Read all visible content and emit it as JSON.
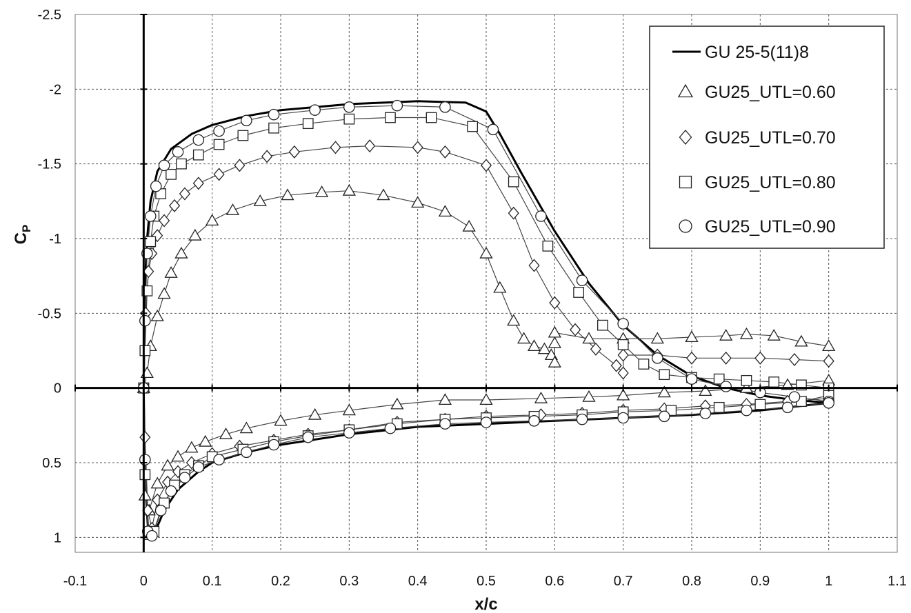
{
  "chart_data": {
    "type": "line",
    "xlabel": "x/c",
    "ylabel": "C",
    "ylabel_sub": "P",
    "xlim": [
      -0.1,
      1.1
    ],
    "ylim": [
      1.1,
      -2.5
    ],
    "y_inverted": true,
    "x_ticks": [
      "-0.1",
      "0",
      "0.1",
      "0.2",
      "0.3",
      "0.4",
      "0.5",
      "0.6",
      "0.7",
      "0.8",
      "0.9",
      "1",
      "1.1"
    ],
    "y_ticks": [
      "-2.5",
      "-2",
      "-1.5",
      "-1",
      "-0.5",
      "0",
      "0.5",
      "1"
    ],
    "grid": true,
    "legend_position": "top-right",
    "series": [
      {
        "name": "GU 25-5(11)8",
        "marker": "none",
        "upper": [
          [
            0,
            0
          ],
          [
            0.002,
            -0.7
          ],
          [
            0.005,
            -1.0
          ],
          [
            0.01,
            -1.25
          ],
          [
            0.02,
            -1.45
          ],
          [
            0.04,
            -1.6
          ],
          [
            0.07,
            -1.7
          ],
          [
            0.1,
            -1.76
          ],
          [
            0.15,
            -1.82
          ],
          [
            0.2,
            -1.86
          ],
          [
            0.3,
            -1.9
          ],
          [
            0.4,
            -1.92
          ],
          [
            0.47,
            -1.91
          ],
          [
            0.5,
            -1.85
          ],
          [
            0.52,
            -1.7
          ],
          [
            0.55,
            -1.45
          ],
          [
            0.6,
            -1.05
          ],
          [
            0.65,
            -0.7
          ],
          [
            0.7,
            -0.42
          ],
          [
            0.75,
            -0.22
          ],
          [
            0.8,
            -0.08
          ],
          [
            0.85,
            0.0
          ],
          [
            0.9,
            0.05
          ],
          [
            0.95,
            0.08
          ],
          [
            1.0,
            0.1
          ]
        ],
        "lower": [
          [
            0,
            0
          ],
          [
            0.002,
            0.6
          ],
          [
            0.006,
            0.92
          ],
          [
            0.015,
            0.98
          ],
          [
            0.03,
            0.82
          ],
          [
            0.05,
            0.68
          ],
          [
            0.08,
            0.56
          ],
          [
            0.1,
            0.5
          ],
          [
            0.15,
            0.43
          ],
          [
            0.2,
            0.38
          ],
          [
            0.3,
            0.31
          ],
          [
            0.4,
            0.26
          ],
          [
            0.5,
            0.24
          ],
          [
            0.6,
            0.22
          ],
          [
            0.7,
            0.2
          ],
          [
            0.8,
            0.18
          ],
          [
            0.9,
            0.15
          ],
          [
            1.0,
            0.1
          ]
        ]
      },
      {
        "name": "GU25_UTL=0.60",
        "marker": "triangle",
        "upper": [
          [
            0,
            0
          ],
          [
            0.005,
            -0.1
          ],
          [
            0.01,
            -0.28
          ],
          [
            0.02,
            -0.48
          ],
          [
            0.03,
            -0.63
          ],
          [
            0.04,
            -0.77
          ],
          [
            0.055,
            -0.9
          ],
          [
            0.075,
            -1.02
          ],
          [
            0.1,
            -1.12
          ],
          [
            0.13,
            -1.19
          ],
          [
            0.17,
            -1.25
          ],
          [
            0.21,
            -1.29
          ],
          [
            0.26,
            -1.31
          ],
          [
            0.3,
            -1.32
          ],
          [
            0.35,
            -1.29
          ],
          [
            0.4,
            -1.24
          ],
          [
            0.44,
            -1.18
          ],
          [
            0.475,
            -1.08
          ],
          [
            0.5,
            -0.9
          ],
          [
            0.52,
            -0.67
          ],
          [
            0.54,
            -0.45
          ],
          [
            0.555,
            -0.33
          ],
          [
            0.57,
            -0.28
          ],
          [
            0.585,
            -0.26
          ],
          [
            0.595,
            -0.22
          ],
          [
            0.6,
            -0.17
          ],
          [
            0.6,
            -0.3
          ],
          [
            0.6,
            -0.37
          ],
          [
            0.65,
            -0.33
          ],
          [
            0.7,
            -0.33
          ],
          [
            0.75,
            -0.33
          ],
          [
            0.8,
            -0.34
          ],
          [
            0.85,
            -0.35
          ],
          [
            0.88,
            -0.36
          ],
          [
            0.92,
            -0.35
          ],
          [
            0.96,
            -0.31
          ],
          [
            1.0,
            -0.28
          ]
        ],
        "lower": [
          [
            0,
            0
          ],
          [
            0.002,
            0.72
          ],
          [
            0.008,
            0.82
          ],
          [
            0.02,
            0.64
          ],
          [
            0.035,
            0.52
          ],
          [
            0.05,
            0.46
          ],
          [
            0.07,
            0.4
          ],
          [
            0.09,
            0.36
          ],
          [
            0.12,
            0.31
          ],
          [
            0.15,
            0.27
          ],
          [
            0.2,
            0.22
          ],
          [
            0.25,
            0.18
          ],
          [
            0.3,
            0.15
          ],
          [
            0.37,
            0.11
          ],
          [
            0.44,
            0.08
          ],
          [
            0.5,
            0.08
          ],
          [
            0.58,
            0.07
          ],
          [
            0.65,
            0.06
          ],
          [
            0.7,
            0.05
          ],
          [
            0.76,
            0.03
          ],
          [
            0.82,
            0.02
          ],
          [
            0.88,
            0.0
          ],
          [
            0.94,
            -0.02
          ],
          [
            1.0,
            -0.05
          ]
        ]
      },
      {
        "name": "GU25_UTL=0.70",
        "marker": "diamond",
        "upper": [
          [
            0,
            0
          ],
          [
            0.003,
            -0.5
          ],
          [
            0.007,
            -0.78
          ],
          [
            0.012,
            -0.9
          ],
          [
            0.02,
            -1.02
          ],
          [
            0.03,
            -1.12
          ],
          [
            0.045,
            -1.22
          ],
          [
            0.06,
            -1.3
          ],
          [
            0.08,
            -1.37
          ],
          [
            0.11,
            -1.43
          ],
          [
            0.14,
            -1.49
          ],
          [
            0.18,
            -1.55
          ],
          [
            0.22,
            -1.58
          ],
          [
            0.28,
            -1.61
          ],
          [
            0.33,
            -1.62
          ],
          [
            0.4,
            -1.61
          ],
          [
            0.44,
            -1.58
          ],
          [
            0.5,
            -1.49
          ],
          [
            0.54,
            -1.17
          ],
          [
            0.57,
            -0.82
          ],
          [
            0.6,
            -0.57
          ],
          [
            0.63,
            -0.39
          ],
          [
            0.66,
            -0.26
          ],
          [
            0.69,
            -0.15
          ],
          [
            0.7,
            -0.1
          ],
          [
            0.7,
            -0.22
          ],
          [
            0.75,
            -0.22
          ],
          [
            0.8,
            -0.2
          ],
          [
            0.85,
            -0.2
          ],
          [
            0.9,
            -0.2
          ],
          [
            0.95,
            -0.19
          ],
          [
            1.0,
            -0.18
          ]
        ],
        "lower": [
          [
            0,
            0
          ],
          [
            0.002,
            0.33
          ],
          [
            0.006,
            0.82
          ],
          [
            0.012,
            0.94
          ],
          [
            0.02,
            0.75
          ],
          [
            0.035,
            0.63
          ],
          [
            0.05,
            0.56
          ],
          [
            0.07,
            0.5
          ],
          [
            0.1,
            0.44
          ],
          [
            0.14,
            0.39
          ],
          [
            0.19,
            0.35
          ],
          [
            0.24,
            0.31
          ],
          [
            0.3,
            0.28
          ],
          [
            0.37,
            0.23
          ],
          [
            0.44,
            0.21
          ],
          [
            0.5,
            0.19
          ],
          [
            0.58,
            0.18
          ],
          [
            0.64,
            0.17
          ],
          [
            0.7,
            0.15
          ],
          [
            0.76,
            0.14
          ],
          [
            0.82,
            0.12
          ],
          [
            0.88,
            0.11
          ],
          [
            0.94,
            0.09
          ],
          [
            1.0,
            0.07
          ]
        ]
      },
      {
        "name": "GU25_UTL=0.80",
        "marker": "square",
        "upper": [
          [
            0,
            0
          ],
          [
            0.002,
            -0.25
          ],
          [
            0.005,
            -0.65
          ],
          [
            0.01,
            -0.98
          ],
          [
            0.015,
            -1.15
          ],
          [
            0.025,
            -1.3
          ],
          [
            0.04,
            -1.43
          ],
          [
            0.055,
            -1.5
          ],
          [
            0.08,
            -1.56
          ],
          [
            0.11,
            -1.63
          ],
          [
            0.145,
            -1.69
          ],
          [
            0.19,
            -1.74
          ],
          [
            0.24,
            -1.77
          ],
          [
            0.3,
            -1.8
          ],
          [
            0.36,
            -1.81
          ],
          [
            0.42,
            -1.81
          ],
          [
            0.48,
            -1.75
          ],
          [
            0.54,
            -1.38
          ],
          [
            0.59,
            -0.95
          ],
          [
            0.635,
            -0.64
          ],
          [
            0.67,
            -0.42
          ],
          [
            0.7,
            -0.29
          ],
          [
            0.73,
            -0.16
          ],
          [
            0.76,
            -0.09
          ],
          [
            0.8,
            -0.07
          ],
          [
            0.84,
            -0.06
          ],
          [
            0.88,
            -0.05
          ],
          [
            0.92,
            -0.04
          ],
          [
            0.96,
            -0.02
          ],
          [
            1.0,
            0.0
          ]
        ],
        "lower": [
          [
            0,
            0
          ],
          [
            0.002,
            0.58
          ],
          [
            0.008,
            0.98
          ],
          [
            0.015,
            0.96
          ],
          [
            0.03,
            0.77
          ],
          [
            0.045,
            0.65
          ],
          [
            0.06,
            0.58
          ],
          [
            0.08,
            0.52
          ],
          [
            0.1,
            0.46
          ],
          [
            0.145,
            0.41
          ],
          [
            0.19,
            0.36
          ],
          [
            0.24,
            0.32
          ],
          [
            0.3,
            0.28
          ],
          [
            0.37,
            0.24
          ],
          [
            0.44,
            0.21
          ],
          [
            0.5,
            0.2
          ],
          [
            0.57,
            0.19
          ],
          [
            0.64,
            0.18
          ],
          [
            0.7,
            0.16
          ],
          [
            0.77,
            0.15
          ],
          [
            0.84,
            0.13
          ],
          [
            0.9,
            0.11
          ],
          [
            0.96,
            0.09
          ],
          [
            1.0,
            0.05
          ]
        ]
      },
      {
        "name": "GU25_UTL=0.90",
        "marker": "circle",
        "upper": [
          [
            0,
            0
          ],
          [
            0.002,
            -0.45
          ],
          [
            0.005,
            -0.9
          ],
          [
            0.01,
            -1.15
          ],
          [
            0.018,
            -1.35
          ],
          [
            0.03,
            -1.49
          ],
          [
            0.05,
            -1.58
          ],
          [
            0.08,
            -1.66
          ],
          [
            0.11,
            -1.72
          ],
          [
            0.15,
            -1.79
          ],
          [
            0.19,
            -1.83
          ],
          [
            0.25,
            -1.86
          ],
          [
            0.3,
            -1.88
          ],
          [
            0.37,
            -1.89
          ],
          [
            0.44,
            -1.88
          ],
          [
            0.51,
            -1.73
          ],
          [
            0.58,
            -1.15
          ],
          [
            0.64,
            -0.72
          ],
          [
            0.7,
            -0.43
          ],
          [
            0.75,
            -0.2
          ],
          [
            0.8,
            -0.06
          ],
          [
            0.85,
            -0.01
          ],
          [
            0.9,
            0.03
          ],
          [
            0.95,
            0.06
          ],
          [
            1.0,
            0.09
          ]
        ],
        "lower": [
          [
            0,
            0
          ],
          [
            0.002,
            0.48
          ],
          [
            0.006,
            0.96
          ],
          [
            0.012,
            0.99
          ],
          [
            0.025,
            0.82
          ],
          [
            0.04,
            0.69
          ],
          [
            0.06,
            0.6
          ],
          [
            0.08,
            0.53
          ],
          [
            0.11,
            0.48
          ],
          [
            0.15,
            0.43
          ],
          [
            0.19,
            0.38
          ],
          [
            0.24,
            0.33
          ],
          [
            0.3,
            0.3
          ],
          [
            0.36,
            0.27
          ],
          [
            0.44,
            0.24
          ],
          [
            0.5,
            0.23
          ],
          [
            0.57,
            0.22
          ],
          [
            0.64,
            0.21
          ],
          [
            0.7,
            0.2
          ],
          [
            0.76,
            0.19
          ],
          [
            0.82,
            0.17
          ],
          [
            0.88,
            0.15
          ],
          [
            0.94,
            0.13
          ],
          [
            1.0,
            0.1
          ]
        ]
      }
    ]
  }
}
